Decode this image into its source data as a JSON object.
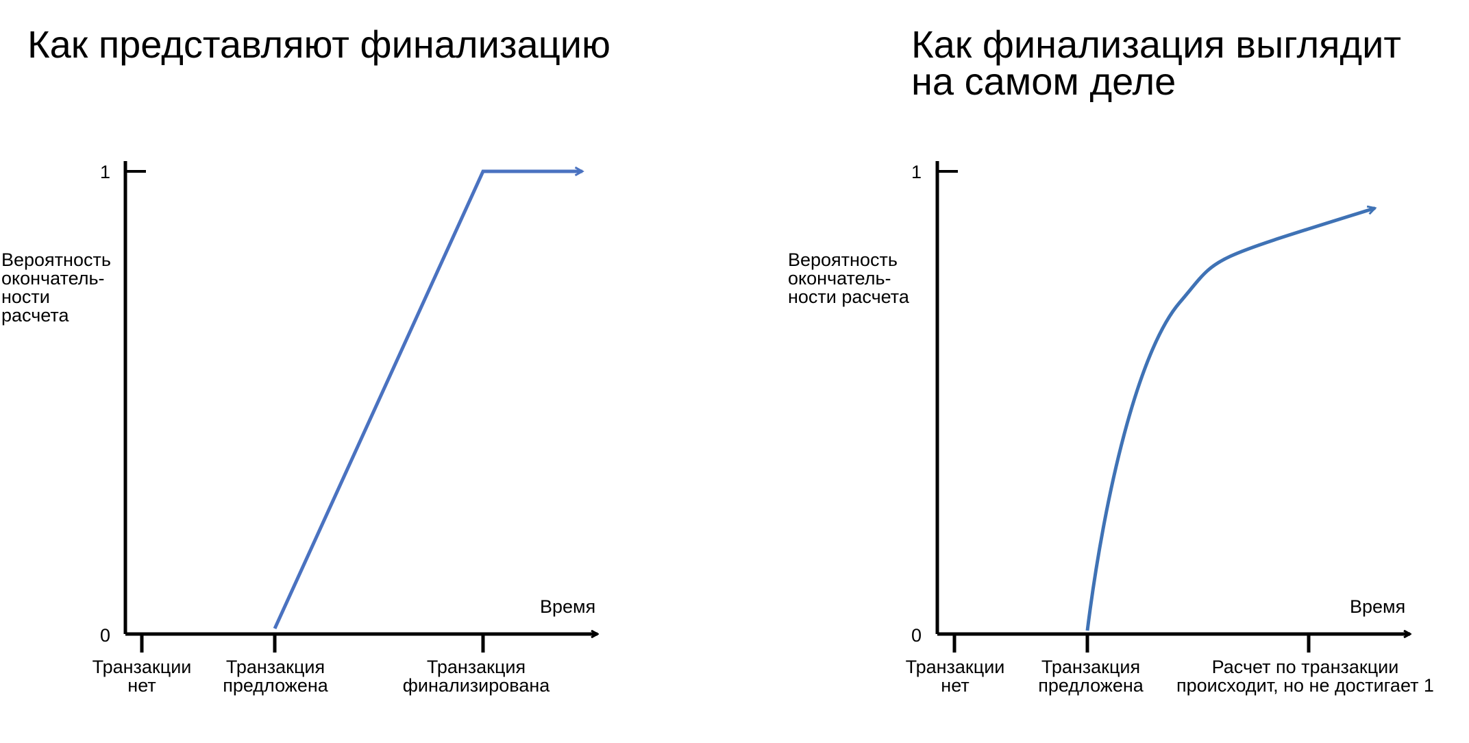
{
  "chart_data": [
    {
      "type": "line",
      "title": "Как представляют финализацию",
      "ylabel": "Вероятность\nокончатель-\nности\nрасчета",
      "xlabel": "Время",
      "y_ticks": [
        "0",
        "1"
      ],
      "x_categories": [
        "Транзакции\nнет",
        "Транзакция\nпредложена",
        "Транзакция\nфинализирована"
      ],
      "ylim": [
        0,
        1
      ],
      "series": [
        {
          "points": [
            [
              1,
              0
            ],
            [
              2,
              1
            ],
            [
              2.48,
              1
            ]
          ],
          "shape": "linear",
          "color": "#4A72C0"
        }
      ]
    },
    {
      "type": "line",
      "title": "Как финализация выглядит\nна самом деле",
      "ylabel": "Вероятность\nокончатель-\nности расчета",
      "xlabel": "Время",
      "y_ticks": [
        "0",
        "1"
      ],
      "x_categories": [
        "Транзакции\nнет",
        "Транзакция\nпредложена",
        "Расчет по транзакции\nпроисходит, но не достигает 1"
      ],
      "ylim": [
        0,
        1
      ],
      "series": [
        {
          "points": [
            [
              1,
              0
            ],
            [
              1.2,
              0.55
            ],
            [
              1.5,
              0.75
            ],
            [
              2,
              0.86
            ],
            [
              2.3,
              0.92
            ]
          ],
          "shape": "smooth",
          "color": "#3F72B5"
        }
      ]
    }
  ]
}
